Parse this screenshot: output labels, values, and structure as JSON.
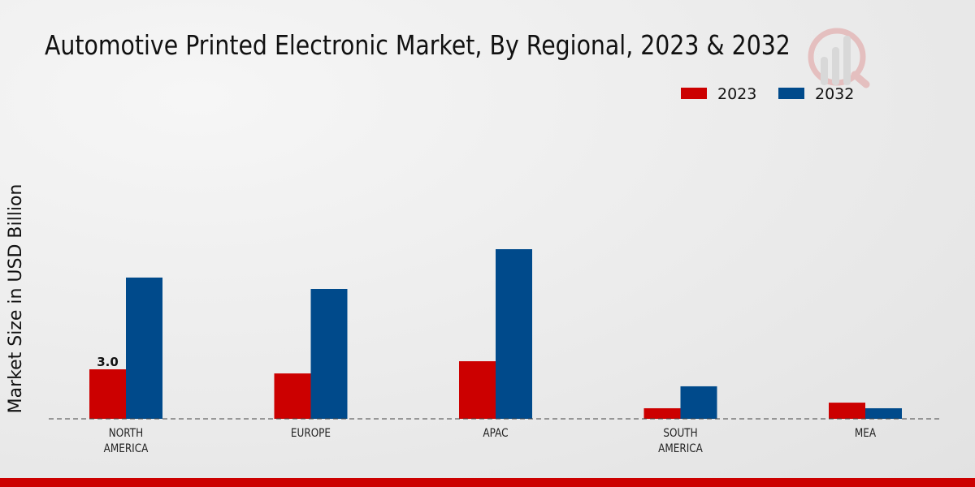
{
  "chart_data": {
    "type": "bar",
    "title": "Automotive Printed Electronic Market, By Regional, 2023 & 2032",
    "xlabel": "",
    "ylabel": "Market Size in USD Billion",
    "categories": [
      "NORTH\nAMERICA",
      "EUROPE",
      "APAC",
      "SOUTH\nAMERICA",
      "MEA"
    ],
    "series": [
      {
        "name": "2023",
        "color": "#cc0000",
        "values": [
          3.0,
          2.75,
          3.49,
          0.64,
          0.98
        ]
      },
      {
        "name": "2032",
        "color": "#004a8b",
        "values": [
          8.56,
          7.87,
          10.28,
          1.97,
          0.64
        ]
      }
    ],
    "data_labels": [
      {
        "series": "2023",
        "category": 0,
        "text": "3.0"
      }
    ],
    "ylim": [
      0,
      12
    ],
    "grid": false,
    "legend_position": "top-right"
  }
}
